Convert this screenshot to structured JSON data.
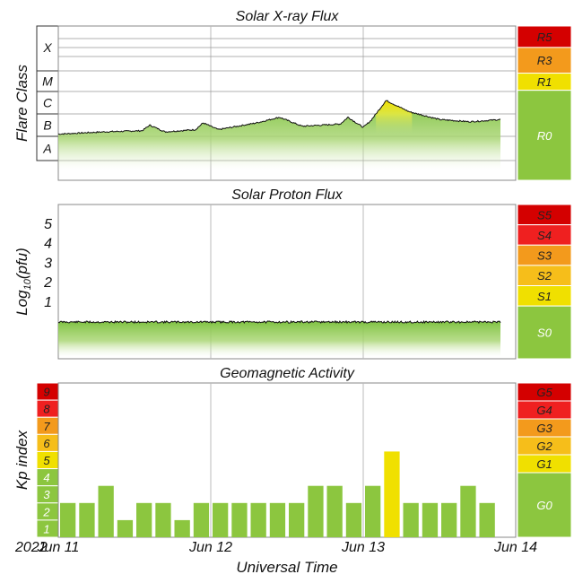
{
  "xaxis": {
    "year": "2022",
    "label": "Universal Time",
    "ticks": [
      "Jun 11",
      "Jun 12",
      "Jun 13",
      "Jun 14"
    ]
  },
  "xray": {
    "title": "Solar X-ray Flux",
    "ylabel": "Flare Class",
    "classes": [
      "X",
      "M",
      "C",
      "B",
      "A"
    ],
    "scale": [
      {
        "label": "R5",
        "color": "#d40000"
      },
      {
        "label": "R3",
        "color": "#f39a1c"
      },
      {
        "label": "R1",
        "color": "#f0e000"
      },
      {
        "label": "R0",
        "color": "#8cc63f"
      }
    ]
  },
  "proton": {
    "title": "Solar Proton Flux",
    "ylabel_main": "Log",
    "ylabel_sub": "10",
    "ylabel_end": "(pfu)",
    "ticks": [
      "5",
      "4",
      "3",
      "2",
      "1"
    ],
    "scale": [
      {
        "label": "S5",
        "color": "#d40000"
      },
      {
        "label": "S4",
        "color": "#ef2020"
      },
      {
        "label": "S3",
        "color": "#f39a1c"
      },
      {
        "label": "S2",
        "color": "#f6be1a"
      },
      {
        "label": "S1",
        "color": "#f0e000"
      },
      {
        "label": "S0",
        "color": "#8cc63f"
      }
    ]
  },
  "geomag": {
    "title": "Geomagnetic Activity",
    "ylabel": "Kp index",
    "kp_levels": [
      {
        "label": "9",
        "color": "#d40000"
      },
      {
        "label": "8",
        "color": "#ef2020"
      },
      {
        "label": "7",
        "color": "#f39a1c"
      },
      {
        "label": "6",
        "color": "#f6be1a"
      },
      {
        "label": "5",
        "color": "#f0e000"
      },
      {
        "label": "4",
        "color": "#8cc63f"
      },
      {
        "label": "3",
        "color": "#8cc63f"
      },
      {
        "label": "2",
        "color": "#8cc63f"
      },
      {
        "label": "1",
        "color": "#8cc63f"
      }
    ],
    "scale": [
      {
        "label": "G5",
        "color": "#d40000"
      },
      {
        "label": "G4",
        "color": "#ef2020"
      },
      {
        "label": "G3",
        "color": "#f39a1c"
      },
      {
        "label": "G2",
        "color": "#f6be1a"
      },
      {
        "label": "G1",
        "color": "#f0e000"
      },
      {
        "label": "G0",
        "color": "#8cc63f"
      }
    ]
  },
  "chart_data": [
    {
      "type": "area",
      "title": "Solar X-ray Flux",
      "ylabel": "Flare Class",
      "xlabel": "Universal Time",
      "x_range": [
        "2022-06-11",
        "2022-06-14"
      ],
      "y_categories": [
        "A",
        "B",
        "C",
        "M",
        "X"
      ],
      "x_days": [
        0.0,
        0.3,
        0.55,
        0.6,
        0.7,
        0.9,
        0.95,
        1.05,
        1.3,
        1.45,
        1.6,
        1.85,
        1.9,
        2.0,
        2.05,
        2.15,
        2.3,
        2.5,
        2.7,
        2.9
      ],
      "y_class_level": [
        2.1,
        2.2,
        2.25,
        2.5,
        2.2,
        2.3,
        2.6,
        2.3,
        2.6,
        2.85,
        2.45,
        2.55,
        2.85,
        2.4,
        2.7,
        3.6,
        3.1,
        2.75,
        2.65,
        2.75
      ]
    },
    {
      "type": "area",
      "title": "Solar Proton Flux",
      "ylabel": "Log10(pfu)",
      "xlabel": "Universal Time",
      "x_range": [
        "2022-06-11",
        "2022-06-14"
      ],
      "ylim": [
        -1,
        6
      ],
      "x_days": [
        0.0,
        2.9
      ],
      "y_log_pfu": [
        -0.07,
        -0.07
      ]
    },
    {
      "type": "bar",
      "title": "Geomagnetic Activity",
      "ylabel": "Kp index",
      "xlabel": "Universal Time",
      "ylim": [
        0,
        9
      ],
      "interval_hours": 3,
      "start": "2022-06-11T00:00Z",
      "values": [
        2,
        2,
        3,
        1,
        2,
        2,
        1,
        2,
        2,
        2,
        2,
        2,
        2,
        3,
        3,
        2,
        3,
        5,
        2,
        2,
        2,
        3,
        2
      ],
      "colors": [
        "#8cc63f",
        "#8cc63f",
        "#8cc63f",
        "#8cc63f",
        "#8cc63f",
        "#8cc63f",
        "#8cc63f",
        "#8cc63f",
        "#8cc63f",
        "#8cc63f",
        "#8cc63f",
        "#8cc63f",
        "#8cc63f",
        "#8cc63f",
        "#8cc63f",
        "#8cc63f",
        "#8cc63f",
        "#f0e000",
        "#8cc63f",
        "#8cc63f",
        "#8cc63f",
        "#8cc63f",
        "#8cc63f"
      ]
    }
  ]
}
